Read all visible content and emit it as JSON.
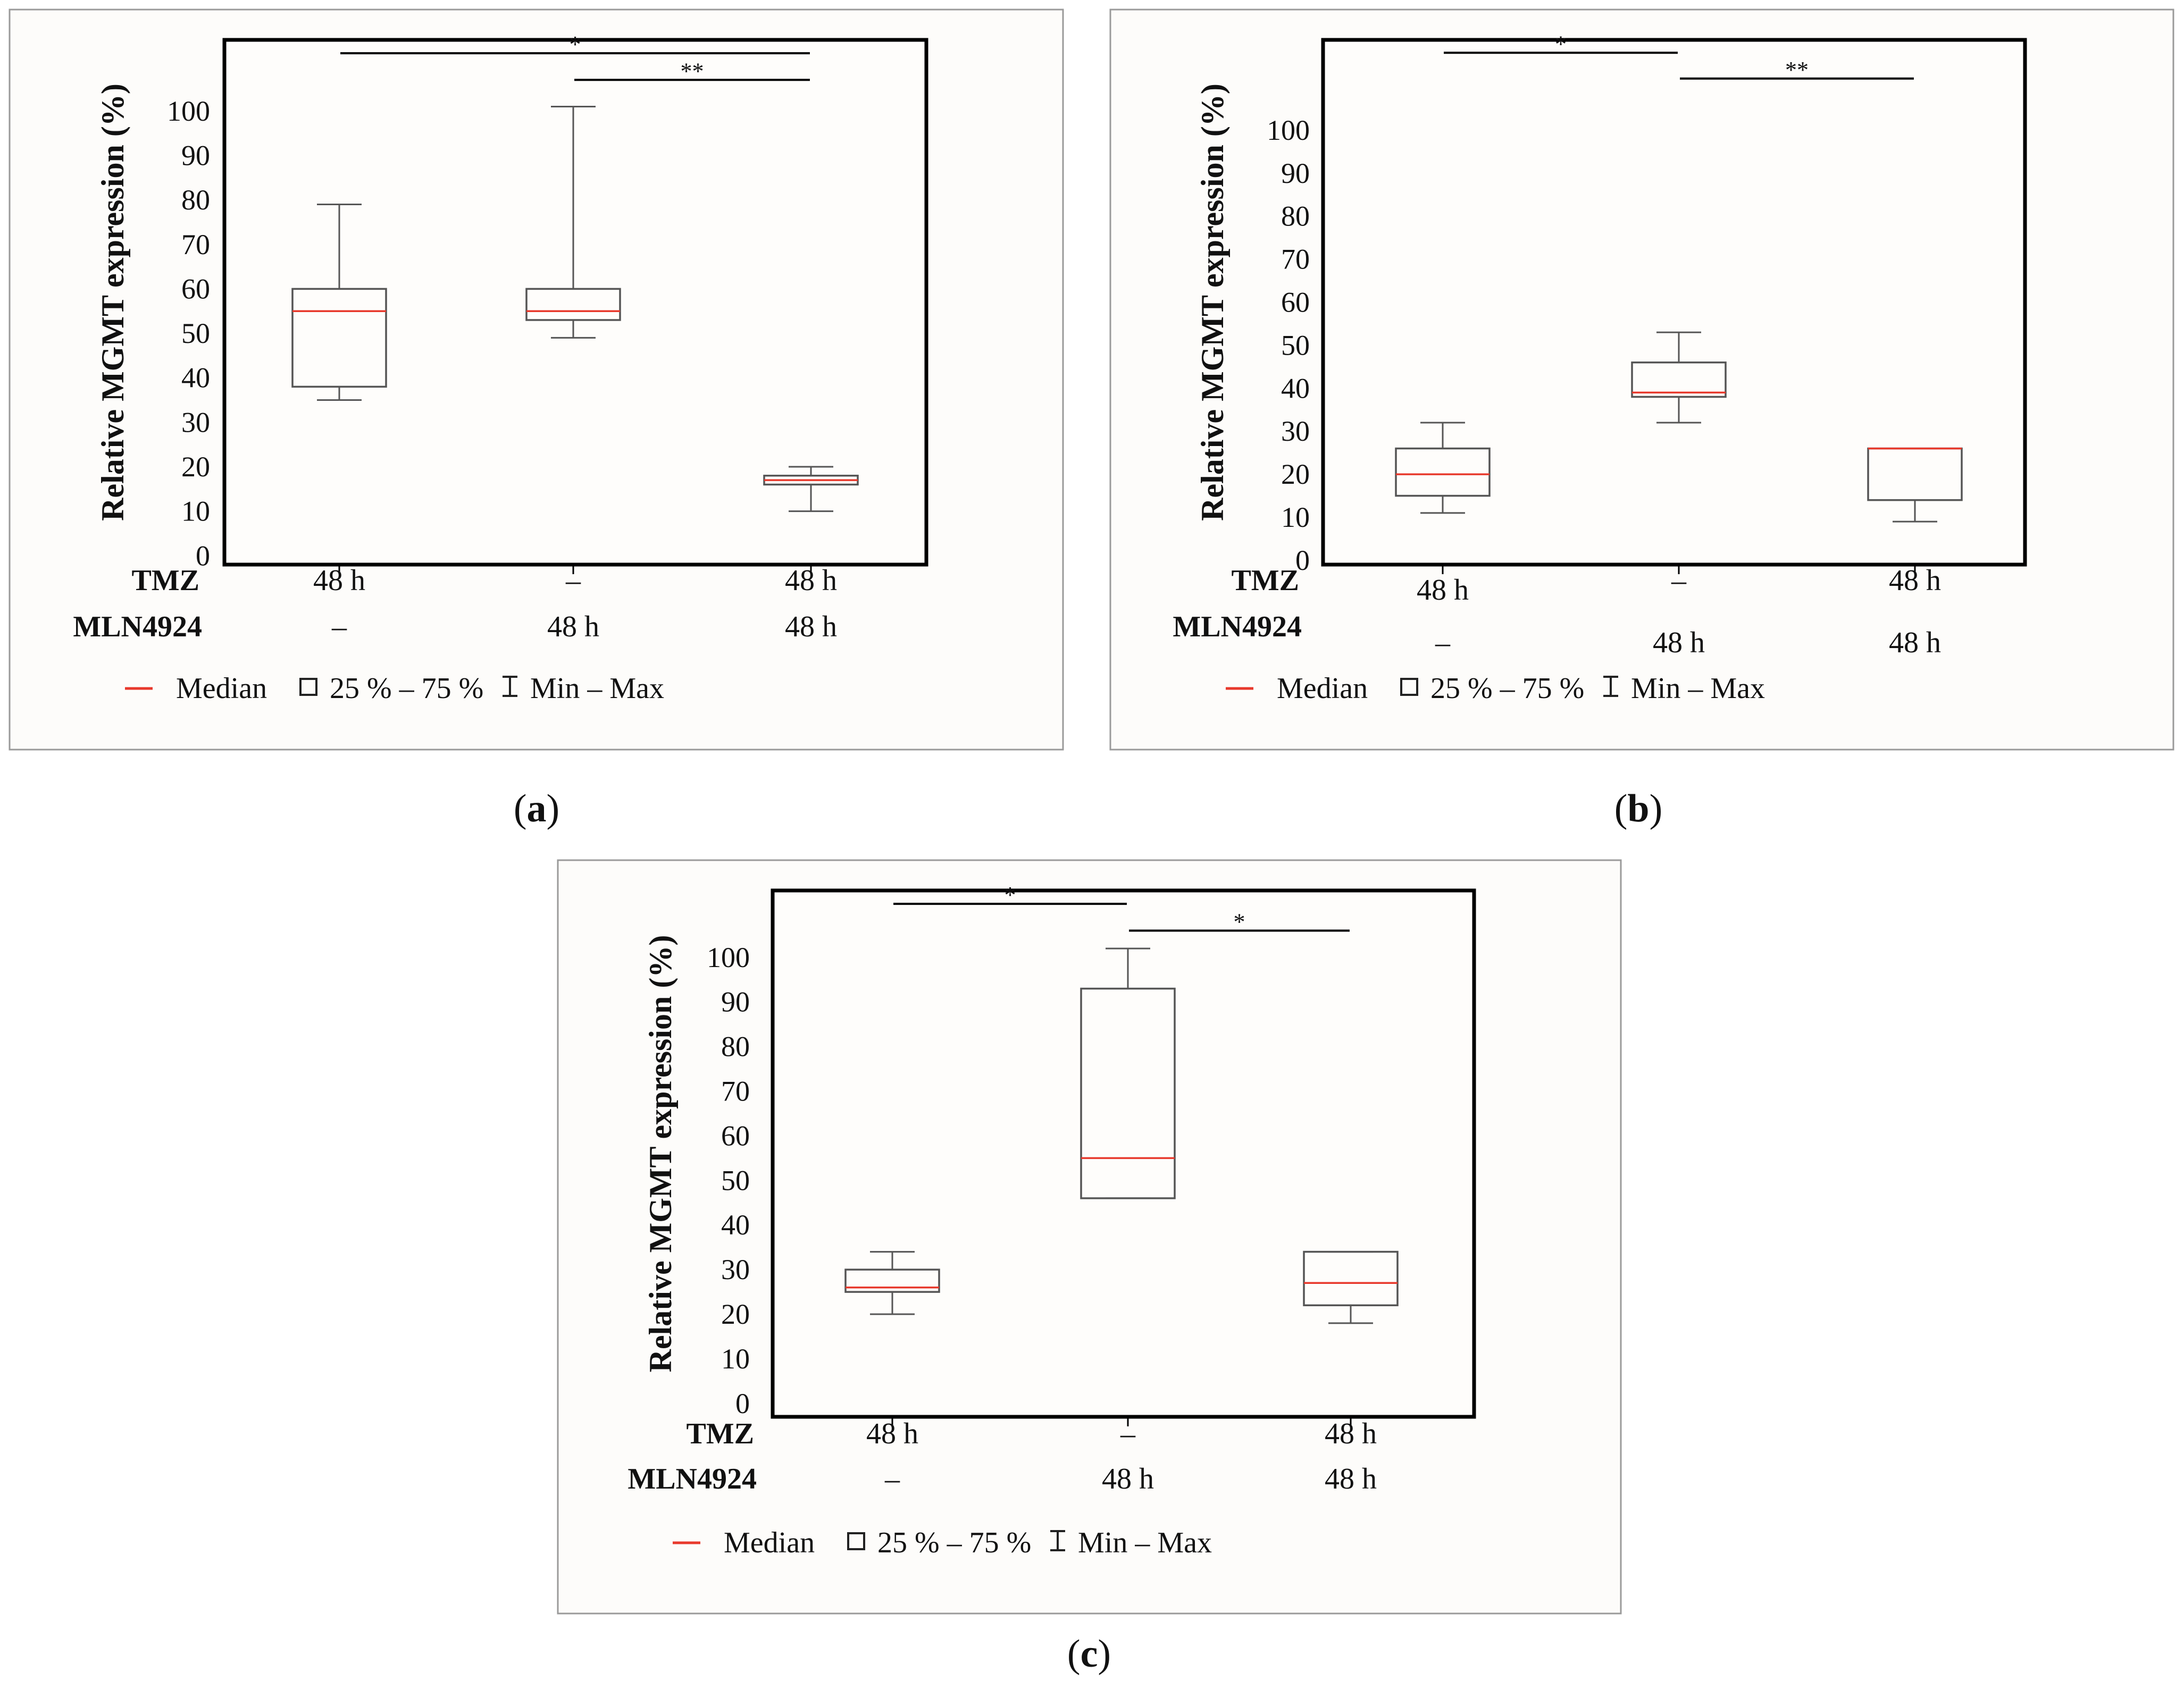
{
  "figure": {
    "legend": {
      "median": "Median",
      "box": "25 % – 75 %",
      "whisker": "Min – Max"
    },
    "colors": {
      "median": "#e8392c",
      "box": "#555555",
      "frame": "#000000",
      "panel_border": "#9a9a9a",
      "panel_bg": "#fdfcfa"
    }
  },
  "chart_data": [
    {
      "panel": "a",
      "caption": {
        "open": "(",
        "letter": "a",
        "close": ")"
      },
      "type": "box",
      "ylabel": "Relative MGMT expression (%)",
      "y_ticks": [
        0,
        10,
        20,
        30,
        40,
        50,
        60,
        70,
        80,
        90,
        100
      ],
      "ylim": [
        -2,
        116
      ],
      "row_labels": [
        "TMZ",
        "MLN4924"
      ],
      "groups": [
        {
          "tmz": "48 h",
          "mln": "–",
          "min": 35,
          "q1": 38,
          "median": 55,
          "q3": 60,
          "max": 79
        },
        {
          "tmz": "–",
          "mln": "48 h",
          "min": 49,
          "q1": 53,
          "median": 55,
          "q3": 60,
          "max": 101
        },
        {
          "tmz": "48 h",
          "mln": "48 h",
          "min": 10,
          "q1": 16,
          "median": 17,
          "q3": 18,
          "max": 20
        }
      ],
      "significance": [
        {
          "from": 0,
          "to": 2,
          "label": "*",
          "y": 113
        },
        {
          "from": 1,
          "to": 2,
          "label": "**",
          "y": 107
        }
      ]
    },
    {
      "panel": "b",
      "caption": {
        "open": "(",
        "letter": "b",
        "close": ")"
      },
      "type": "box",
      "ylabel": "Relative MGMT expression (%)",
      "y_ticks": [
        0,
        10,
        20,
        30,
        40,
        50,
        60,
        70,
        80,
        90,
        100
      ],
      "ylim": [
        -1,
        121
      ],
      "row_labels": [
        "TMZ",
        "MLN4924"
      ],
      "groups": [
        {
          "tmz": "48 h",
          "mln": "–",
          "min": 11,
          "q1": 15,
          "median": 20,
          "q3": 26,
          "max": 32
        },
        {
          "tmz": "–",
          "mln": "48 h",
          "min": 32,
          "q1": 38,
          "median": 39,
          "q3": 46,
          "max": 53
        },
        {
          "tmz": "48 h",
          "mln": "48 h",
          "min": 9,
          "q1": 14,
          "median": 26,
          "q3": 26,
          "max": 26
        }
      ],
      "significance": [
        {
          "from": 0,
          "to": 1,
          "label": "*",
          "y": 118
        },
        {
          "from": 1,
          "to": 2,
          "label": "**",
          "y": 112
        }
      ]
    },
    {
      "panel": "c",
      "caption": {
        "open": "(",
        "letter": "c",
        "close": ")"
      },
      "type": "box",
      "ylabel": "Relative MGMT expression (%)",
      "y_ticks": [
        0,
        10,
        20,
        30,
        40,
        50,
        60,
        70,
        80,
        90,
        100
      ],
      "ylim": [
        -3,
        115
      ],
      "row_labels": [
        "TMZ",
        "MLN4924"
      ],
      "groups": [
        {
          "tmz": "48 h",
          "mln": "–",
          "min": 20,
          "q1": 25,
          "median": 26,
          "q3": 30,
          "max": 34
        },
        {
          "tmz": "–",
          "mln": "48 h",
          "min": 46,
          "q1": 46,
          "median": 55,
          "q3": 93,
          "max": 102
        },
        {
          "tmz": "48 h",
          "mln": "48 h",
          "min": 18,
          "q1": 22,
          "median": 27,
          "q3": 34,
          "max": 34
        }
      ],
      "significance": [
        {
          "from": 0,
          "to": 1,
          "label": "*",
          "y": 112
        },
        {
          "from": 1,
          "to": 2,
          "label": "*",
          "y": 106
        }
      ]
    }
  ]
}
